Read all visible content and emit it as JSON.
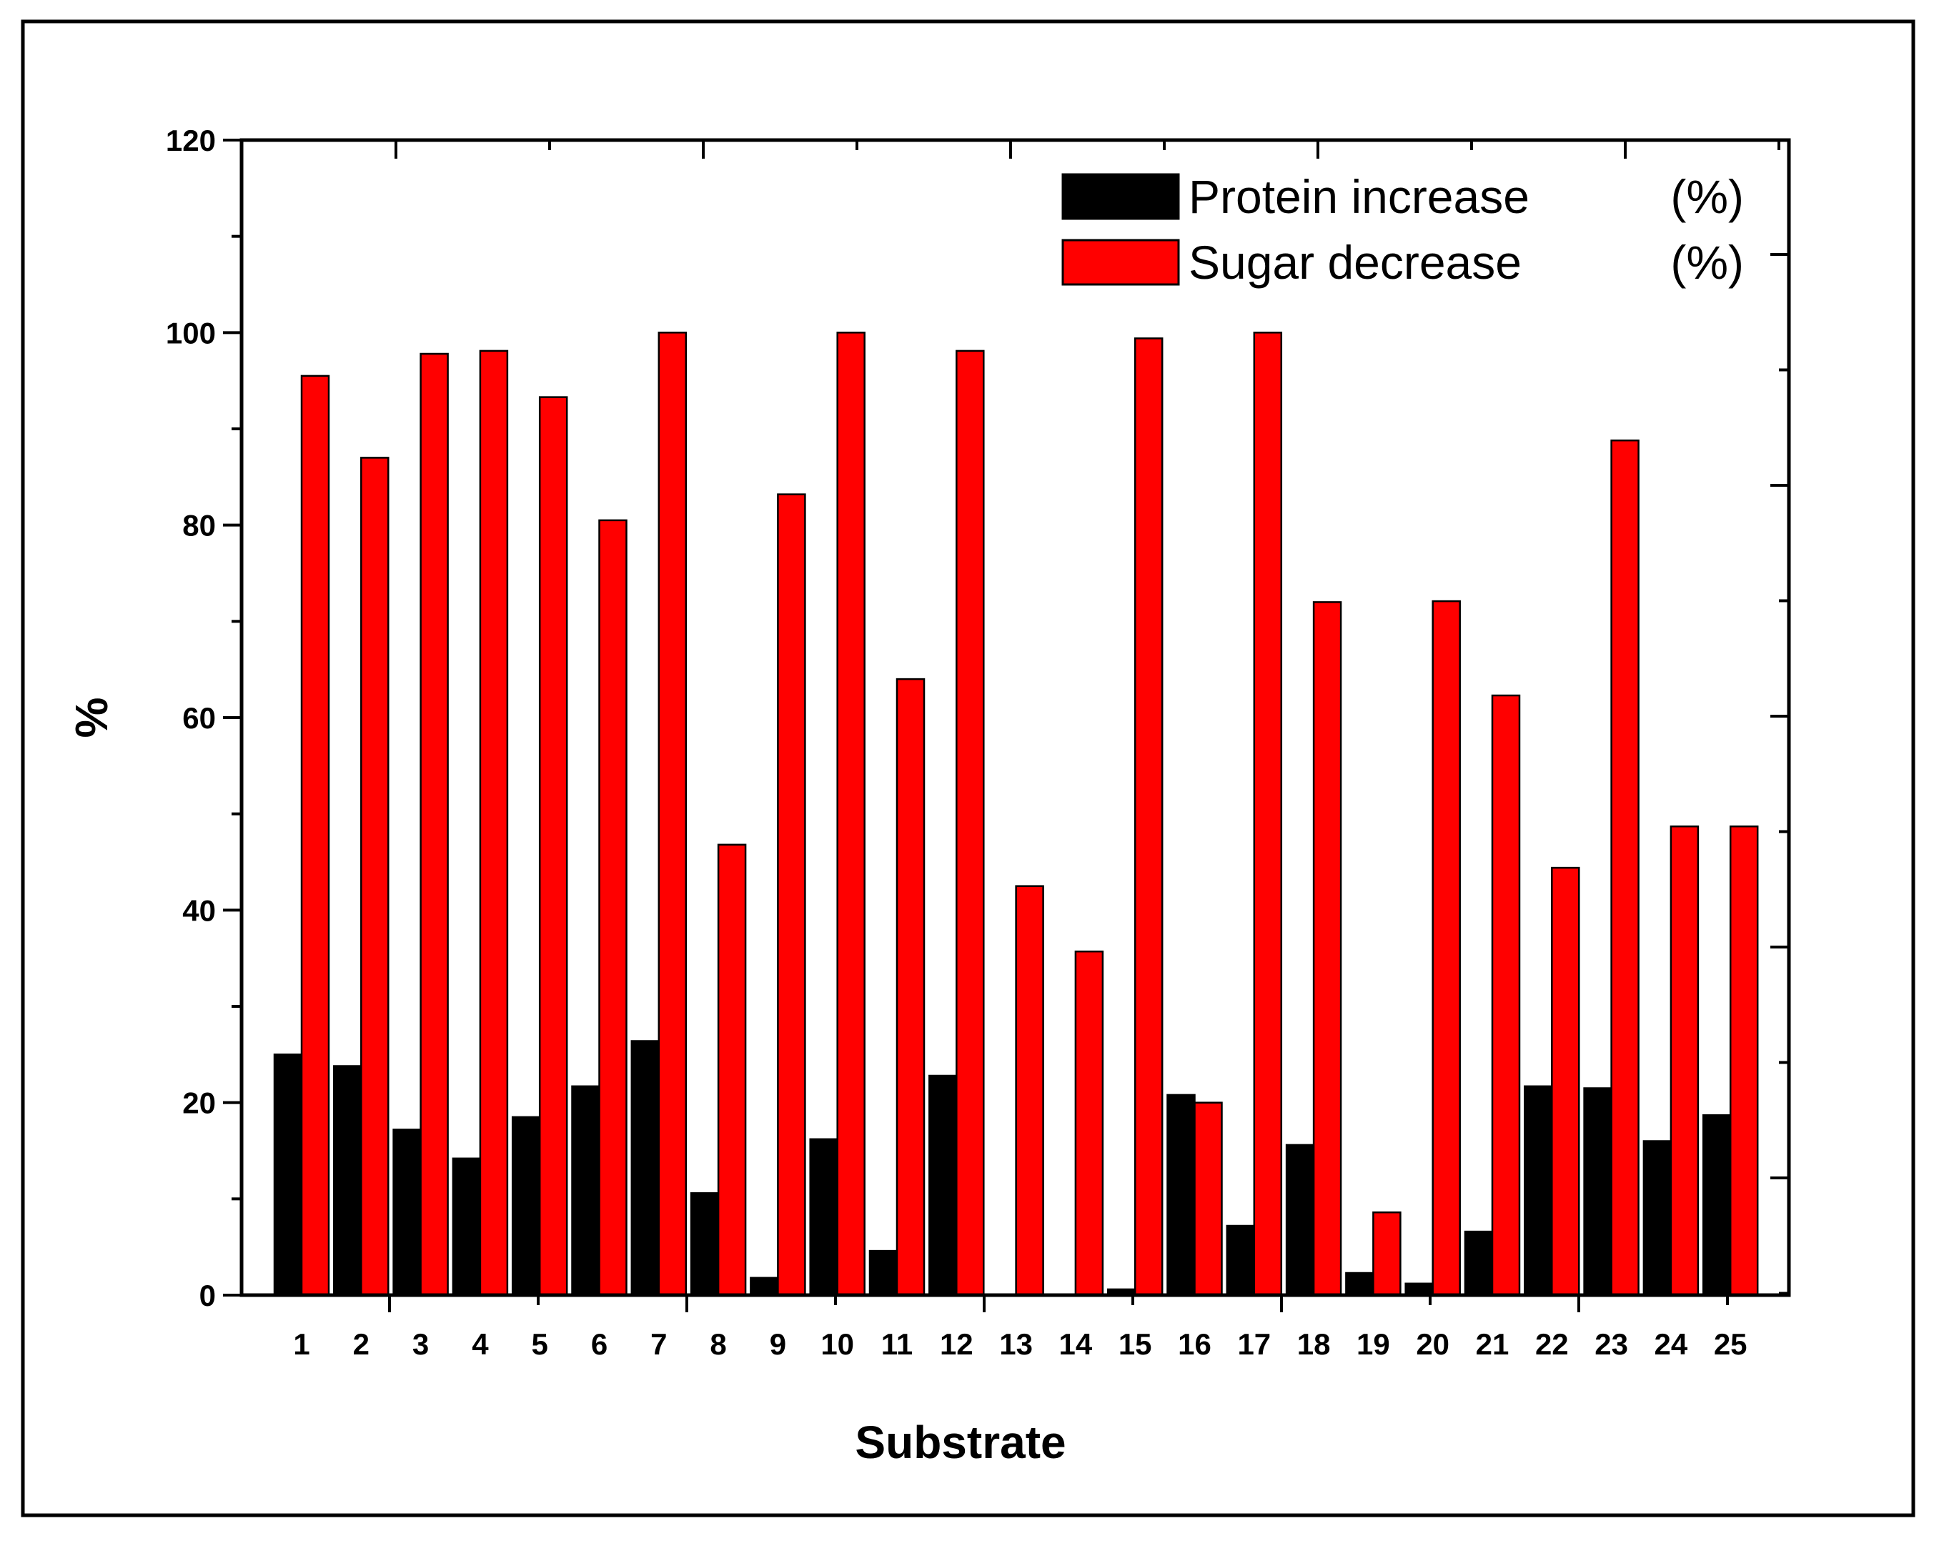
{
  "chart_data": {
    "type": "bar",
    "title": "",
    "xlabel": "Substrate",
    "ylabel": "%",
    "ylim": [
      0,
      120
    ],
    "yticks": [
      0,
      20,
      40,
      60,
      80,
      100,
      120
    ],
    "yticks_text": [
      "0",
      "20",
      "40",
      "60",
      "80",
      "100",
      "120"
    ],
    "categories": [
      "1",
      "2",
      "3",
      "4",
      "5",
      "6",
      "7",
      "8",
      "9",
      "10",
      "11",
      "12",
      "13",
      "14",
      "15",
      "16",
      "17",
      "18",
      "19",
      "20",
      "21",
      "22",
      "23",
      "24",
      "25"
    ],
    "series": [
      {
        "name": "Protein increase",
        "unit": "(%)",
        "color": "#000000",
        "values": [
          25,
          23.8,
          17.2,
          14.2,
          18.5,
          21.7,
          26.4,
          10.6,
          1.8,
          16.2,
          4.6,
          22.8,
          0,
          0,
          0.6,
          20.8,
          7.2,
          15.6,
          2.3,
          1.2,
          6.6,
          21.7,
          21.5,
          16,
          18.7
        ]
      },
      {
        "name": "Sugar decrease",
        "unit": "(%)",
        "color": "#ff0000",
        "values": [
          95.5,
          87,
          97.8,
          98.1,
          93.3,
          80.5,
          100,
          46.8,
          83.2,
          100,
          64,
          98.1,
          42.5,
          35.7,
          99.4,
          20,
          100,
          72,
          8.6,
          72.1,
          62.3,
          44.4,
          88.8,
          48.7,
          48.7
        ]
      }
    ],
    "legend_position": "top-right"
  }
}
